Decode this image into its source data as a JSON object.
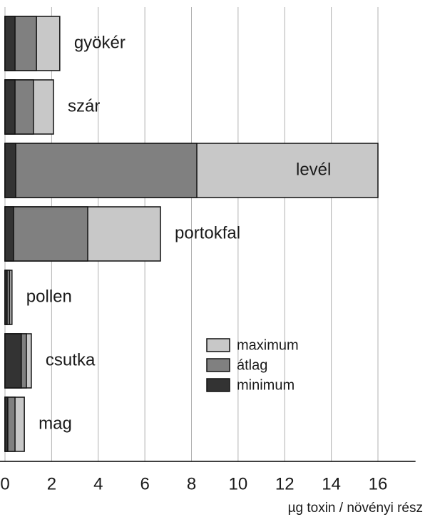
{
  "chart_data": {
    "type": "bar",
    "orientation": "horizontal",
    "overlap": true,
    "x_label": "µg toxin / növényi rész",
    "categories": [
      "gyökér",
      "szár",
      "levél",
      "portokfal",
      "pollen",
      "csutka",
      "mag"
    ],
    "series": [
      {
        "name": "maximum",
        "color": "#c8c8c8",
        "values": [
          2.35,
          2.08,
          16.0,
          6.67,
          0.3,
          1.13,
          0.83
        ]
      },
      {
        "name": "átlag",
        "color": "#808080",
        "values": [
          1.35,
          1.22,
          8.23,
          3.55,
          0.2,
          0.92,
          0.43
        ]
      },
      {
        "name": "minimum",
        "color": "#333333",
        "values": [
          0.43,
          0.43,
          0.46,
          0.37,
          0.09,
          0.7,
          0.12
        ]
      }
    ],
    "xlim": [
      0,
      17
    ],
    "xticks": [
      0,
      2,
      4,
      6,
      8,
      10,
      12,
      14,
      16
    ],
    "grid": true
  }
}
